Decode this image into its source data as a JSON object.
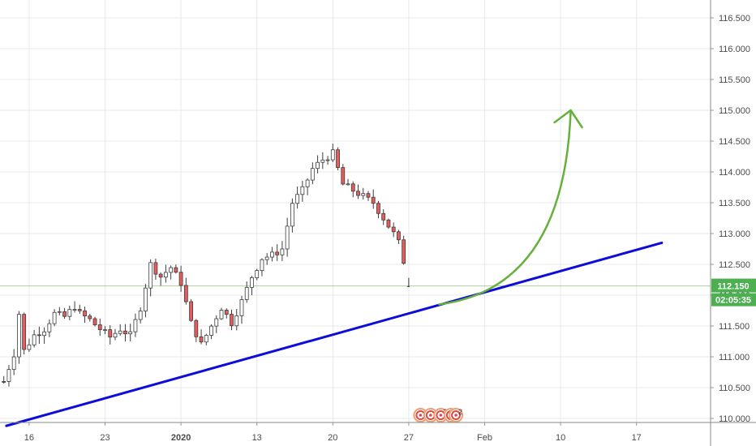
{
  "chart_data": {
    "type": "candlestick",
    "y_axis": {
      "range": [
        109.9,
        116.75
      ],
      "ticks": [
        "110.000",
        "110.500",
        "111.000",
        "111.500",
        "112.000",
        "112.500",
        "113.000",
        "113.500",
        "114.000",
        "114.500",
        "115.000",
        "115.500",
        "116.000",
        "116.500"
      ],
      "position": "right",
      "grid": true
    },
    "x_axis": {
      "ticks": [
        {
          "label": "16",
          "bold": false,
          "index": 5
        },
        {
          "label": "23",
          "bold": false,
          "index": 20
        },
        {
          "label": "2020",
          "bold": true,
          "index": 35
        },
        {
          "label": "13",
          "bold": false,
          "index": 50
        },
        {
          "label": "20",
          "bold": false,
          "index": 65
        },
        {
          "label": "27",
          "bold": false,
          "index": 80
        },
        {
          "label": "Feb",
          "bold": false,
          "index": 95
        },
        {
          "label": "10",
          "bold": false,
          "index": 110
        },
        {
          "label": "17",
          "bold": false,
          "index": 125
        }
      ],
      "grid": true
    },
    "price_path": [
      [
        0,
        110.6
      ],
      [
        2,
        111.05
      ],
      [
        3,
        111.7
      ],
      [
        4,
        111.1
      ],
      [
        6,
        111.35
      ],
      [
        8,
        111.45
      ],
      [
        10,
        111.7
      ],
      [
        12,
        111.65
      ],
      [
        14,
        111.82
      ],
      [
        15,
        111.7
      ],
      [
        17,
        111.6
      ],
      [
        19,
        111.45
      ],
      [
        21,
        111.32
      ],
      [
        23,
        111.45
      ],
      [
        25,
        111.35
      ],
      [
        27,
        111.8
      ],
      [
        29,
        112.5
      ],
      [
        31,
        112.3
      ],
      [
        33,
        112.45
      ],
      [
        35,
        112.2
      ],
      [
        37,
        111.55
      ],
      [
        39,
        111.2
      ],
      [
        41,
        111.5
      ],
      [
        43,
        111.8
      ],
      [
        45,
        111.55
      ],
      [
        47,
        111.9
      ],
      [
        49,
        112.3
      ],
      [
        51,
        112.6
      ],
      [
        53,
        112.65
      ],
      [
        55,
        112.75
      ],
      [
        57,
        113.5
      ],
      [
        59,
        113.7
      ],
      [
        61,
        114.05
      ],
      [
        63,
        114.2
      ],
      [
        65,
        114.3
      ],
      [
        67,
        113.8
      ],
      [
        69,
        113.7
      ],
      [
        71,
        113.6
      ],
      [
        73,
        113.5
      ],
      [
        75,
        113.25
      ],
      [
        77,
        113.0
      ],
      [
        78,
        112.85
      ],
      [
        79,
        112.55
      ]
    ],
    "series": [
      {
        "type": "price_line",
        "value": 112.15
      },
      {
        "type": "trendline",
        "from": [
          0.5,
          109.88
        ],
        "to": [
          130,
          112.85
        ]
      },
      {
        "type": "projection_arrow",
        "from": [
          86,
          111.85
        ],
        "to": [
          112,
          115.0
        ]
      }
    ],
    "colors": {
      "up": "#26a69a",
      "down": "#ef5350",
      "candle": "#3d3d3d",
      "down_body": "#e85b5b",
      "trendline": "#0d0ddb",
      "arrow": "#66b03c",
      "grid": "#e8e8ee",
      "price_line": "#6aa84f"
    },
    "current_price": {
      "value": "112.150",
      "countdown": "02:05:35",
      "color": "#4caf50"
    },
    "events": [
      {
        "icon": "event-icon",
        "count": "",
        "index": 82
      },
      {
        "icon": "event-icon",
        "count": "",
        "index": 84
      },
      {
        "icon": "event-icon",
        "count": "3",
        "index": 86
      },
      {
        "icon": "event-icon",
        "count": "8",
        "index": 88
      },
      {
        "icon": "event-icon",
        "count": "2",
        "index": 89
      }
    ]
  }
}
